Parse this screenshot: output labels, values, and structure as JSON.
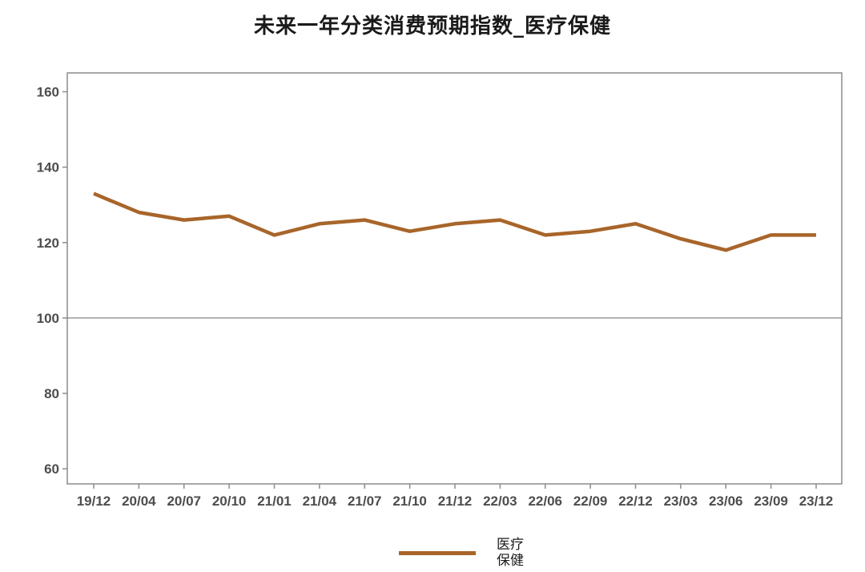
{
  "chart_data": {
    "type": "line",
    "title": "未来一年分类消费预期指数_医疗保健",
    "xlabel": "",
    "ylabel": "",
    "categories": [
      "19/12",
      "20/04",
      "20/07",
      "20/10",
      "21/01",
      "21/04",
      "21/07",
      "21/10",
      "21/12",
      "22/03",
      "22/06",
      "22/09",
      "22/12",
      "23/03",
      "23/06",
      "23/09",
      "23/12"
    ],
    "series": [
      {
        "name": "医疗保健",
        "color": "#A8652A",
        "values": [
          133,
          128,
          126,
          127,
          122,
          125,
          126,
          123,
          125,
          126,
          122,
          123,
          125,
          121,
          118,
          122,
          122
        ]
      }
    ],
    "ylim": [
      56,
      165
    ],
    "yticks": [
      60,
      80,
      100,
      120,
      140,
      160
    ],
    "reference_line": 100,
    "grid": false,
    "legend_position": "bottom"
  }
}
